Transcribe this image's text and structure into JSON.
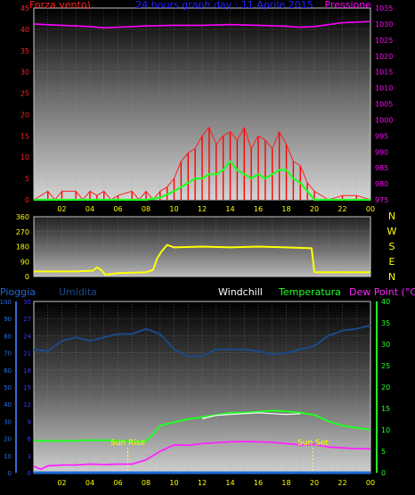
{
  "title": "24 hours graph day : 11 Aprile 2015",
  "colors": {
    "wind": "#ff2020",
    "gust": "#ff0000",
    "pressure": "#ff00ff",
    "title": "#2020ff",
    "direction": "#ffff00",
    "rain": "#1e6bd6",
    "humidity": "#1a4a8a",
    "windchill": "#ffffff",
    "temperature": "#22ff22",
    "dewpoint": "#ff22ff",
    "hour_tick": "#ffff00",
    "rain_axis": "#2a6fd6",
    "hum_axis": "#3a3aff",
    "temp_axis": "#22ff22"
  },
  "panel1": {
    "left_label": "Forza vento)",
    "right_label": "Pressione",
    "left_ticks": [
      "0",
      "5",
      "10",
      "15",
      "20",
      "25",
      "30",
      "35",
      "40",
      "45"
    ],
    "right_ticks": [
      "975",
      "980",
      "985",
      "990",
      "995",
      "1000",
      "1005",
      "1010",
      "1015",
      "1020",
      "1025",
      "1030",
      "1035"
    ]
  },
  "panel2": {
    "left_ticks": [
      "0",
      "90",
      "180",
      "270",
      "360"
    ],
    "right_letters": [
      "N",
      "W",
      "S",
      "E",
      "N"
    ]
  },
  "panel3": {
    "labels": {
      "rain": "Pioggia",
      "humidity": "Umidita",
      "windchill": "Windchill",
      "temperature": "Temperatura",
      "dewpoint": "Dew Point (°C)"
    },
    "rain_ticks": [
      "0",
      "10",
      "20",
      "30",
      "40",
      "50",
      "60",
      "70",
      "80",
      "90",
      "100"
    ],
    "hum_ticks": [
      "0",
      "3",
      "6",
      "9",
      "12",
      "15",
      "18",
      "21",
      "24",
      "27",
      "30"
    ],
    "temp_ticks": [
      "0",
      "5",
      "10",
      "15",
      "20",
      "25",
      "30",
      "35",
      "40"
    ],
    "sunrise": "Sun Rise",
    "sunset": "Sun Set",
    "sunrise_hour": 6.7,
    "sunset_hour": 19.9
  },
  "hours": [
    "02",
    "04",
    "06",
    "08",
    "10",
    "12",
    "14",
    "16",
    "18",
    "20",
    "22",
    "00"
  ],
  "chart_data": [
    {
      "type": "line",
      "title": "24 hours graph day : 11 Aprile 2015",
      "ylabel": "Forza vento)",
      "y2label": "Pressione",
      "xlim": [
        0,
        24
      ],
      "ylim": [
        0,
        45
      ],
      "y2lim": [
        975,
        1035
      ],
      "series": [
        {
          "name": "",
          "role": "wind_speed_gust",
          "x": [
            0,
            1,
            1.5,
            2,
            3,
            3.5,
            4,
            4.5,
            5,
            5.5,
            6,
            7,
            7.5,
            8,
            8.5,
            9,
            9.5,
            10,
            10.5,
            11,
            11.5,
            12,
            12.5,
            13,
            13.5,
            14,
            14.5,
            15,
            15.5,
            16,
            16.5,
            17,
            17.5,
            18,
            18.5,
            19,
            19.5,
            20,
            21,
            22,
            23,
            24
          ],
          "y": [
            0,
            2,
            0,
            2,
            2,
            0,
            2,
            1,
            2,
            0,
            1,
            2,
            0,
            2,
            0,
            2,
            3,
            5,
            9,
            11,
            12,
            15,
            17,
            13,
            15,
            16,
            14,
            17,
            12,
            15,
            14,
            12,
            16,
            13,
            9,
            8,
            4,
            2,
            0,
            1,
            1,
            0
          ]
        },
        {
          "name": "",
          "role": "wind_speed_average",
          "x": [
            0,
            8,
            9,
            10,
            10.5,
            11,
            11.5,
            12,
            12.5,
            13,
            13.5,
            14,
            14.5,
            15,
            15.5,
            16,
            16.5,
            17,
            17.5,
            18,
            18.5,
            19,
            19.5,
            20,
            24
          ],
          "y": [
            0,
            0,
            0.5,
            2,
            3,
            4,
            5,
            5,
            6,
            6,
            7,
            9,
            7,
            6,
            5,
            6,
            5,
            6,
            7,
            7,
            5,
            4,
            2,
            0,
            0
          ]
        },
        {
          "name": "",
          "role": "pressure",
          "axis": "right",
          "x": [
            0,
            2,
            4,
            5,
            6,
            8,
            10,
            12,
            14,
            16,
            18,
            19,
            20,
            21,
            22,
            23,
            24
          ],
          "y": [
            1030,
            1029.6,
            1029.2,
            1028.8,
            1029,
            1029.4,
            1029.6,
            1029.6,
            1029.8,
            1029.6,
            1029.3,
            1029,
            1029.2,
            1029.8,
            1030.4,
            1030.6,
            1030.8
          ]
        }
      ]
    },
    {
      "type": "line",
      "ylabel": "",
      "xlim": [
        0,
        24
      ],
      "ylim": [
        0,
        360
      ],
      "series": [
        {
          "name": "",
          "role": "wind_direction",
          "x": [
            0,
            3,
            4.2,
            4.5,
            4.8,
            5.1,
            6,
            8,
            8.5,
            8.8,
            9.1,
            9.5,
            10,
            12,
            14,
            16,
            18,
            19.8,
            19.9,
            20,
            24
          ],
          "y": [
            30,
            30,
            35,
            55,
            40,
            10,
            20,
            25,
            40,
            110,
            150,
            190,
            175,
            180,
            175,
            180,
            175,
            170,
            100,
            25,
            25
          ]
        }
      ]
    },
    {
      "type": "line",
      "xlim": [
        0,
        24
      ],
      "ylim": [
        0,
        100
      ],
      "y2lim": [
        0,
        40
      ],
      "series": [
        {
          "name": "Umidita",
          "x": [
            0,
            1,
            2,
            3,
            4,
            5,
            6,
            7,
            8,
            9,
            10,
            11,
            12,
            13,
            14,
            15,
            16,
            17,
            18,
            19,
            20,
            21,
            22,
            23,
            24
          ],
          "y": [
            72,
            71,
            77,
            79,
            77,
            79,
            81,
            81,
            84,
            81,
            72,
            68,
            68,
            72,
            72,
            72,
            71,
            69,
            70,
            72,
            74,
            80,
            83,
            84,
            86
          ]
        },
        {
          "name": "Temperatura",
          "axis": "right",
          "x": [
            0,
            2,
            4,
            6,
            7,
            8,
            8.5,
            9,
            10,
            11,
            12,
            13,
            14,
            15,
            16,
            17,
            18,
            19,
            20,
            21,
            22,
            23,
            24
          ],
          "y": [
            7.5,
            7.4,
            7.6,
            7.5,
            7.2,
            7.4,
            9,
            11,
            11.8,
            12.5,
            13,
            13.5,
            14,
            14,
            14.2,
            14.5,
            14.3,
            14,
            13.5,
            12,
            11,
            10.5,
            10
          ]
        },
        {
          "name": "Windchill",
          "axis": "right",
          "x": [
            12,
            13,
            14,
            15,
            16,
            17,
            18,
            19
          ],
          "y": [
            12.6,
            13.4,
            13.6,
            13.8,
            14,
            13.8,
            13.6,
            13.8
          ]
        },
        {
          "name": "Dew Point (°C)",
          "axis": "right",
          "x": [
            0,
            0.5,
            1,
            2,
            3,
            4,
            5,
            6,
            7,
            8,
            9,
            10,
            11,
            12,
            13,
            14,
            15,
            16,
            17,
            18,
            19,
            20,
            21,
            22,
            23,
            24
          ],
          "y": [
            1.5,
            0.8,
            1.6,
            1.8,
            1.8,
            2,
            1.9,
            2,
            2,
            3,
            5,
            6.5,
            6.4,
            6.8,
            7,
            7.2,
            7.3,
            7.2,
            7.1,
            6.8,
            6.5,
            6.6,
            6,
            5.8,
            5.6,
            5.6
          ]
        },
        {
          "name": "Pioggia",
          "x": [
            0,
            24
          ],
          "y": [
            0,
            0
          ]
        }
      ]
    }
  ]
}
